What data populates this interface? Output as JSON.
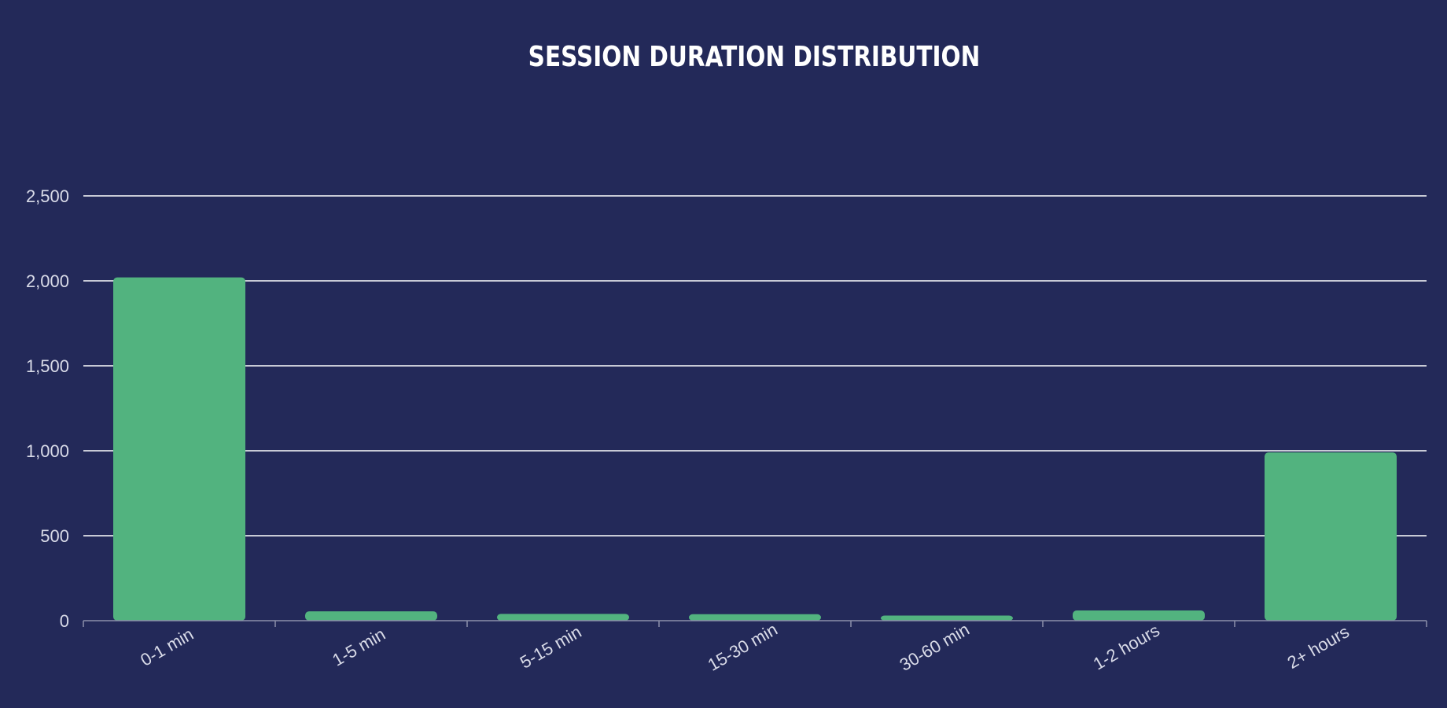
{
  "chart_data": {
    "type": "bar",
    "title": "SESSION DURATION DISTRIBUTION",
    "xlabel": "",
    "ylabel": "",
    "categories": [
      "0-1 min",
      "1-5 min",
      "5-15 min",
      "15-30 min",
      "30-60 min",
      "1-2 hours",
      "2+ hours"
    ],
    "values": [
      2020,
      55,
      40,
      38,
      30,
      60,
      990
    ],
    "ylim": [
      0,
      2500
    ],
    "yticks": [
      0,
      500,
      1000,
      1500,
      2000,
      2500
    ],
    "ytick_labels": [
      "0",
      "500",
      "1,000",
      "1,500",
      "2,000",
      "2,500"
    ],
    "grid": true,
    "legend": "none",
    "colors": {
      "background": "#232959",
      "bar": "#52b37f",
      "grid": "#ffffff",
      "axis": "#8c90aa",
      "text": "#d9dbe8",
      "title": "#ffffff"
    }
  }
}
